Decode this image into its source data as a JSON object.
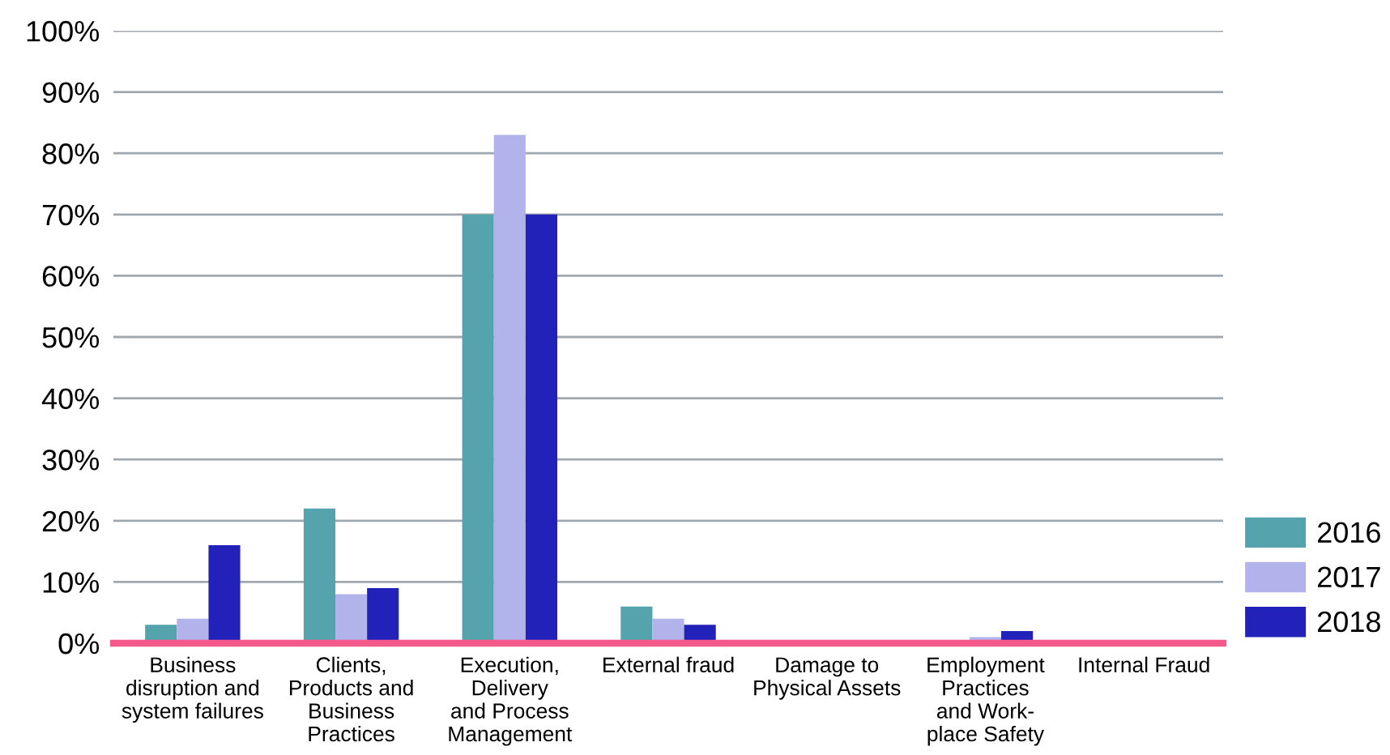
{
  "chart_data": {
    "type": "bar",
    "categories": [
      "Business\ndisruption and\nsystem failures",
      "Clients,\nProducts and\nBusiness\nPractices",
      "Execution,\nDelivery\nand Process\nManagement",
      "External fraud",
      "Damage to\nPhysical Assets",
      "Employment\nPractices\nand Work-\nplace Safety",
      "Internal Fraud"
    ],
    "series": [
      {
        "name": "2016",
        "color": "#55a3ad",
        "values": [
          3,
          22,
          70,
          6,
          0,
          0,
          0
        ]
      },
      {
        "name": "2017",
        "color": "#b3b3ec",
        "values": [
          4,
          8,
          83,
          4,
          0,
          1,
          0
        ]
      },
      {
        "name": "2018",
        "color": "#2222bb",
        "values": [
          16,
          9,
          70,
          3,
          0,
          2,
          0
        ]
      }
    ],
    "ylim": [
      0,
      100
    ],
    "yticks": [
      {
        "value": 0,
        "label": "0%"
      },
      {
        "value": 10,
        "label": "10%"
      },
      {
        "value": 20,
        "label": "20%"
      },
      {
        "value": 30,
        "label": "30%"
      },
      {
        "value": 40,
        "label": "40%"
      },
      {
        "value": 50,
        "label": "50%"
      },
      {
        "value": 60,
        "label": "60%"
      },
      {
        "value": 70,
        "label": "70%"
      },
      {
        "value": 80,
        "label": "80%"
      },
      {
        "value": 90,
        "label": "90%"
      },
      {
        "value": 100,
        "label": "100%"
      }
    ],
    "grid": "y",
    "legend": "bottom right"
  }
}
